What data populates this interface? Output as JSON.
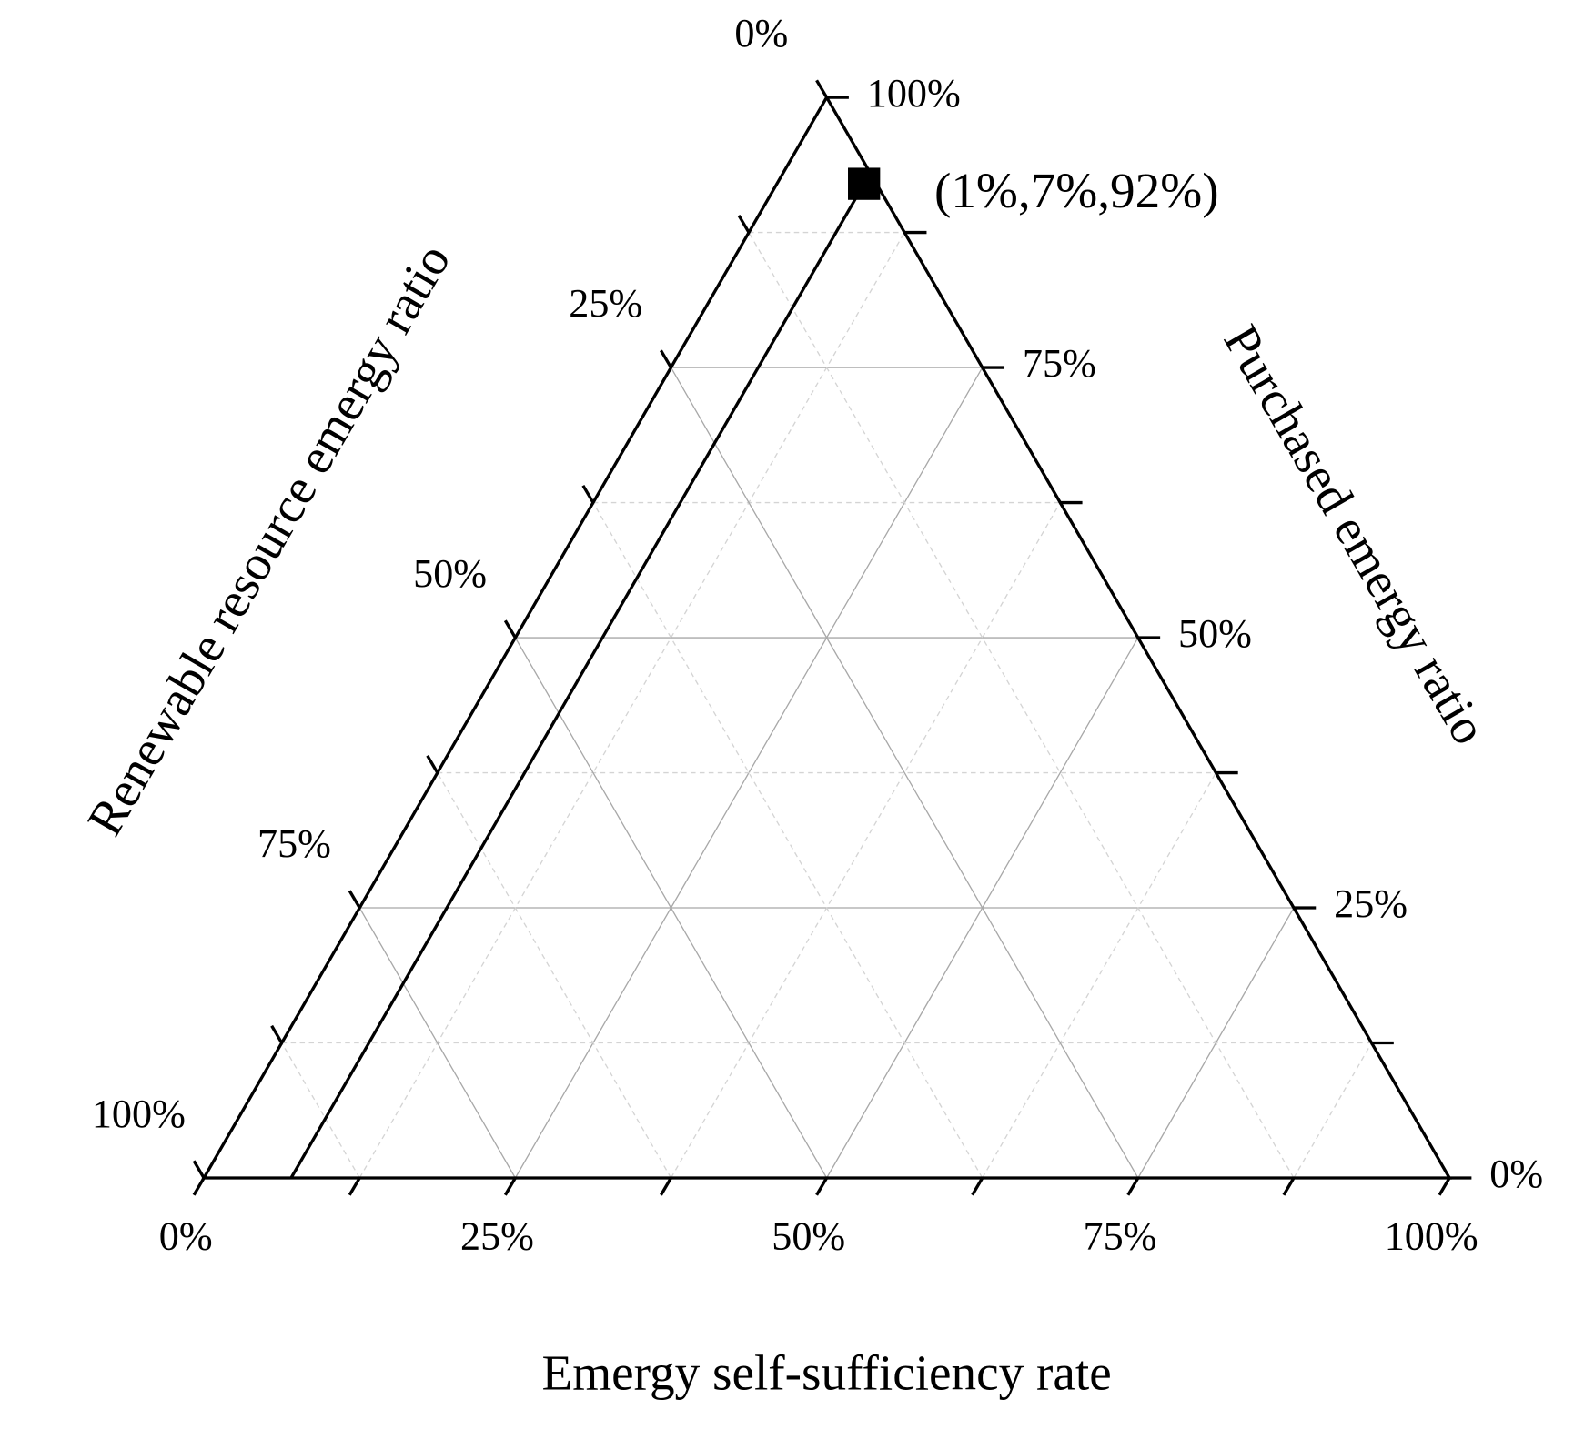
{
  "chart_data": {
    "type": "ternary",
    "bottom_axis": {
      "label": "Emergy self-sufficiency rate",
      "ticks": [
        {
          "value": 0,
          "label": "0%"
        },
        {
          "value": 25,
          "label": "25%"
        },
        {
          "value": 50,
          "label": "50%"
        },
        {
          "value": 75,
          "label": "75%"
        },
        {
          "value": 100,
          "label": "100%"
        }
      ],
      "minor_ticks": [
        12.5,
        37.5,
        62.5,
        87.5
      ]
    },
    "left_axis": {
      "label": "Renewable resource emergy ratio",
      "ticks": [
        {
          "value": 0,
          "label": "0%"
        },
        {
          "value": 25,
          "label": "25%"
        },
        {
          "value": 50,
          "label": "50%"
        },
        {
          "value": 75,
          "label": "75%"
        },
        {
          "value": 100,
          "label": "100%"
        }
      ],
      "minor_ticks": [
        12.5,
        37.5,
        62.5,
        87.5
      ]
    },
    "right_axis": {
      "label": "Purchased emergy ratio",
      "ticks": [
        {
          "value": 0,
          "label": "0%"
        },
        {
          "value": 25,
          "label": "25%"
        },
        {
          "value": 50,
          "label": "50%"
        },
        {
          "value": 75,
          "label": "75%"
        },
        {
          "value": 100,
          "label": "100%"
        }
      ],
      "minor_ticks": [
        12.5,
        37.5,
        62.5,
        87.5
      ]
    },
    "grid": true,
    "minor_grid": true,
    "series": [
      {
        "color": "#000000",
        "values": [
          [
            1,
            7,
            92
          ]
        ],
        "value_labels": [
          "(1%,7%,92%)"
        ]
      }
    ]
  }
}
